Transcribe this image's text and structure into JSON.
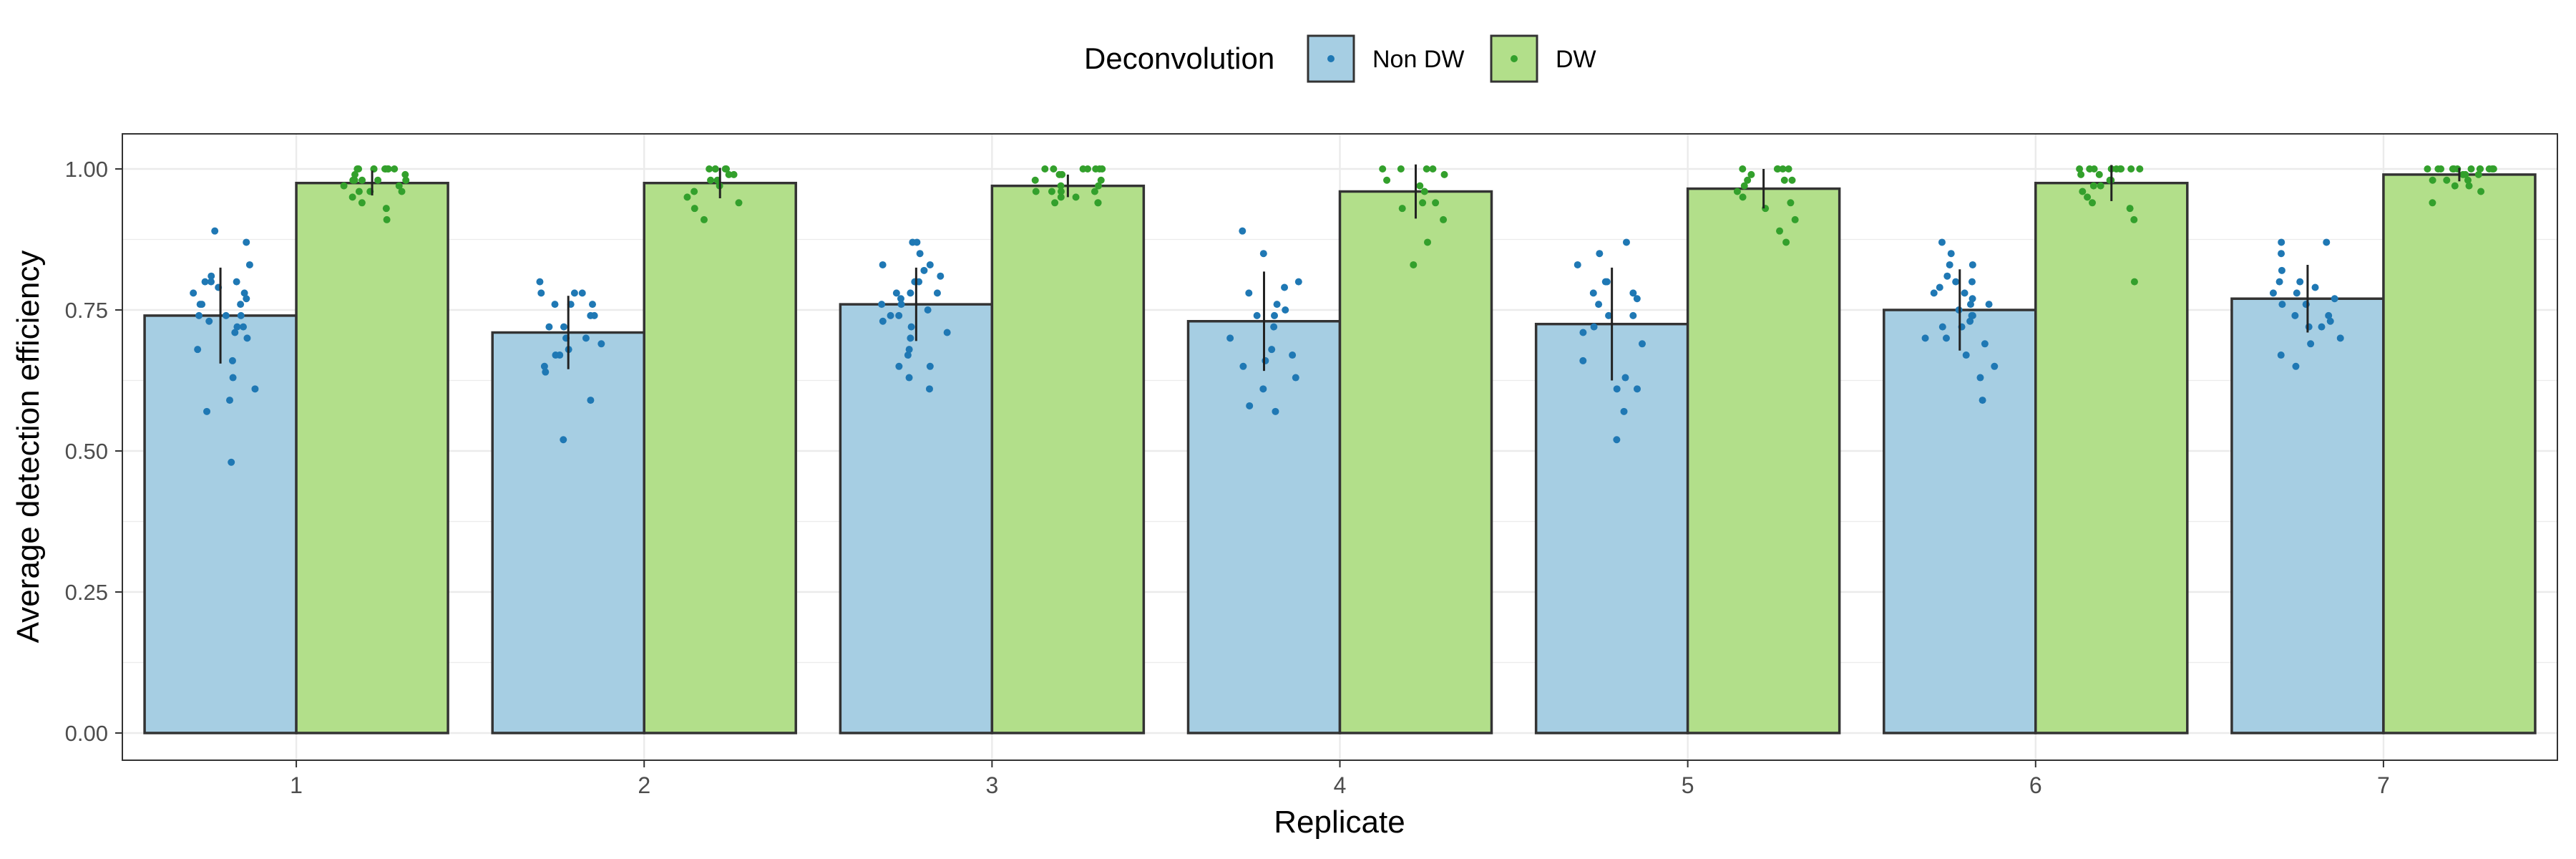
{
  "chart_data": {
    "type": "bar",
    "categories": [
      "1",
      "2",
      "3",
      "4",
      "5",
      "6",
      "7"
    ],
    "xlabel": "Replicate",
    "ylabel": "Average detection efficiency",
    "ylim": [
      0,
      1.06
    ],
    "y_ticks": [
      "0.00",
      "0.25",
      "0.50",
      "0.75",
      "1.00"
    ],
    "grid": true,
    "legend": {
      "title": "Deconvolution",
      "position": "top",
      "entries": [
        "Non DW",
        "DW"
      ]
    },
    "series": [
      {
        "name": "Non DW",
        "fill": "#a6cee3",
        "point_color": "#1f78b4",
        "values": [
          0.74,
          0.71,
          0.76,
          0.73,
          0.725,
          0.75,
          0.77
        ],
        "error": [
          0.085,
          0.065,
          0.065,
          0.088,
          0.1,
          0.072,
          0.06
        ],
        "points": [
          [
            0.48,
            0.57,
            0.59,
            0.61,
            0.63,
            0.66,
            0.68,
            0.7,
            0.71,
            0.72,
            0.72,
            0.73,
            0.74,
            0.74,
            0.74,
            0.76,
            0.76,
            0.76,
            0.77,
            0.78,
            0.78,
            0.79,
            0.8,
            0.8,
            0.8,
            0.81,
            0.83,
            0.87,
            0.89
          ],
          [
            0.52,
            0.59,
            0.64,
            0.65,
            0.67,
            0.67,
            0.68,
            0.69,
            0.7,
            0.7,
            0.72,
            0.72,
            0.74,
            0.74,
            0.76,
            0.76,
            0.76,
            0.78,
            0.78,
            0.78,
            0.8
          ],
          [
            0.61,
            0.63,
            0.65,
            0.65,
            0.67,
            0.68,
            0.7,
            0.71,
            0.72,
            0.73,
            0.74,
            0.74,
            0.75,
            0.76,
            0.76,
            0.77,
            0.78,
            0.78,
            0.78,
            0.8,
            0.8,
            0.81,
            0.82,
            0.83,
            0.83,
            0.85,
            0.87,
            0.87
          ],
          [
            0.57,
            0.58,
            0.61,
            0.63,
            0.65,
            0.66,
            0.67,
            0.68,
            0.7,
            0.72,
            0.74,
            0.74,
            0.75,
            0.76,
            0.78,
            0.79,
            0.8,
            0.85,
            0.89
          ],
          [
            0.52,
            0.57,
            0.61,
            0.61,
            0.63,
            0.66,
            0.69,
            0.71,
            0.72,
            0.74,
            0.74,
            0.76,
            0.77,
            0.78,
            0.78,
            0.8,
            0.8,
            0.83,
            0.85,
            0.87
          ],
          [
            0.59,
            0.63,
            0.65,
            0.67,
            0.69,
            0.7,
            0.7,
            0.72,
            0.72,
            0.73,
            0.74,
            0.74,
            0.75,
            0.76,
            0.76,
            0.77,
            0.78,
            0.78,
            0.79,
            0.8,
            0.8,
            0.81,
            0.83,
            0.83,
            0.85,
            0.87
          ],
          [
            0.65,
            0.67,
            0.69,
            0.7,
            0.72,
            0.72,
            0.73,
            0.74,
            0.74,
            0.76,
            0.76,
            0.76,
            0.77,
            0.78,
            0.78,
            0.79,
            0.8,
            0.8,
            0.82,
            0.85,
            0.87,
            0.87
          ]
        ]
      },
      {
        "name": "DW",
        "fill": "#b2df8a",
        "point_color": "#33a02c",
        "values": [
          0.975,
          0.975,
          0.97,
          0.96,
          0.965,
          0.975,
          0.99
        ],
        "error": [
          0.022,
          0.027,
          0.02,
          0.048,
          0.035,
          0.032,
          0.012
        ],
        "points": [
          [
            0.91,
            0.93,
            0.94,
            0.95,
            0.96,
            0.96,
            0.96,
            0.97,
            0.97,
            0.98,
            0.98,
            0.98,
            0.98,
            0.98,
            0.99,
            0.99,
            1.0,
            1.0,
            1.0,
            1.0,
            1.0,
            1.0,
            1.0,
            1.0,
            1.0
          ],
          [
            0.91,
            0.93,
            0.94,
            0.95,
            0.96,
            0.97,
            0.98,
            0.98,
            0.99,
            0.99,
            1.0,
            1.0,
            1.0,
            1.0,
            1.0
          ],
          [
            0.94,
            0.94,
            0.94,
            0.95,
            0.95,
            0.96,
            0.96,
            0.96,
            0.96,
            0.97,
            0.97,
            0.98,
            0.98,
            0.99,
            0.99,
            1.0,
            1.0,
            1.0,
            1.0,
            1.0,
            1.0,
            1.0
          ],
          [
            0.83,
            0.87,
            0.91,
            0.93,
            0.94,
            0.94,
            0.96,
            0.97,
            0.98,
            0.99,
            1.0,
            1.0,
            1.0,
            1.0
          ],
          [
            0.87,
            0.89,
            0.91,
            0.93,
            0.94,
            0.95,
            0.96,
            0.97,
            0.98,
            0.98,
            0.98,
            0.99,
            1.0,
            1.0,
            1.0,
            1.0,
            1.0
          ],
          [
            0.8,
            0.91,
            0.93,
            0.94,
            0.95,
            0.96,
            0.97,
            0.97,
            0.98,
            0.98,
            0.99,
            0.99,
            1.0,
            1.0,
            1.0,
            1.0,
            1.0,
            1.0,
            1.0,
            1.0,
            1.0
          ],
          [
            0.94,
            0.96,
            0.97,
            0.97,
            0.98,
            0.98,
            0.98,
            0.99,
            0.99,
            0.99,
            1.0,
            1.0,
            1.0,
            1.0,
            1.0,
            1.0,
            1.0,
            1.0,
            1.0,
            1.0,
            1.0,
            1.0
          ]
        ]
      }
    ]
  }
}
